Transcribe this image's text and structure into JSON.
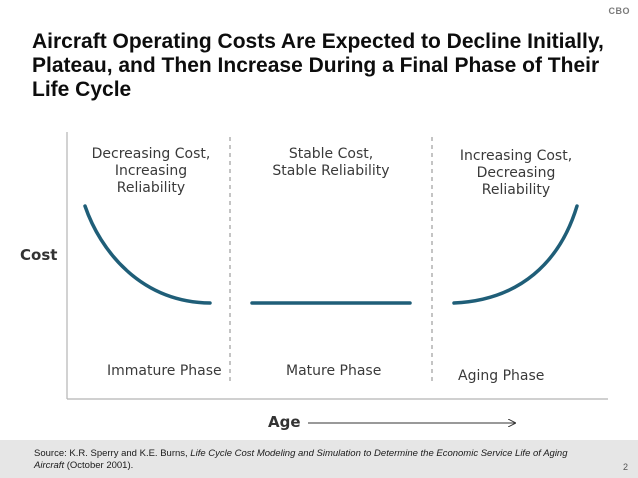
{
  "header": {
    "agency": "CBO"
  },
  "title": "Aircraft Operating Costs Are Expected to Decline Initially, Plateau, and Then Increase During a Final Phase of Their Life Cycle",
  "diagram": {
    "y_axis_label": "Cost",
    "x_axis_label": "Age",
    "phases": [
      {
        "top_line1": "Decreasing Cost,",
        "top_line2": "Increasing Reliability",
        "name": "Immature Phase"
      },
      {
        "top_line1": "Stable Cost,",
        "top_line2": "Stable Reliability",
        "name": "Mature Phase"
      },
      {
        "top_line1": "Increasing Cost,",
        "top_line2": "Decreasing Reliability",
        "name": "Aging Phase"
      }
    ],
    "curve_color": "#1f5e78"
  },
  "footer": {
    "source_prefix": "Source: K.R. Sperry and K.E. Burns, ",
    "source_title": "Life Cycle Cost Modeling and Simulation to Determine the Economic Service Life of Aging Aircraft",
    "source_suffix": " (October 2001).",
    "page_number": "2"
  }
}
